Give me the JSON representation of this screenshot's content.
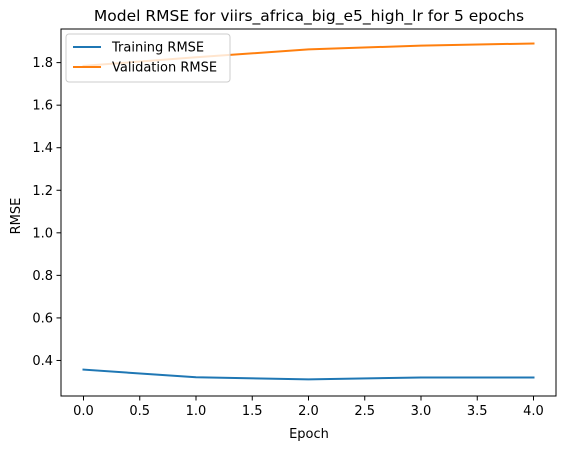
{
  "chart_data": {
    "type": "line",
    "title": "Model RMSE for viirs_africa_big_e5_high_lr for 5 epochs",
    "xlabel": "Epoch",
    "ylabel": "RMSE",
    "x": [
      0,
      1,
      2,
      3,
      4
    ],
    "xlim": [
      -0.2,
      4.2
    ],
    "ylim": [
      0.233,
      1.958
    ],
    "xticks": [
      "0.0",
      "0.5",
      "1.0",
      "1.5",
      "2.0",
      "2.5",
      "3.0",
      "3.5",
      "4.0"
    ],
    "yticks": [
      "0.4",
      "0.6",
      "0.8",
      "1.0",
      "1.2",
      "1.4",
      "1.6",
      "1.8"
    ],
    "grid": false,
    "legend_position": "upper-left",
    "series": [
      {
        "name": "Training RMSE",
        "color": "#1f77b4",
        "values": [
          0.357,
          0.321,
          0.311,
          0.32,
          0.32
        ]
      },
      {
        "name": "Validation RMSE",
        "color": "#ff7f0e",
        "values": [
          1.785,
          1.825,
          1.862,
          1.88,
          1.89
        ]
      }
    ]
  }
}
